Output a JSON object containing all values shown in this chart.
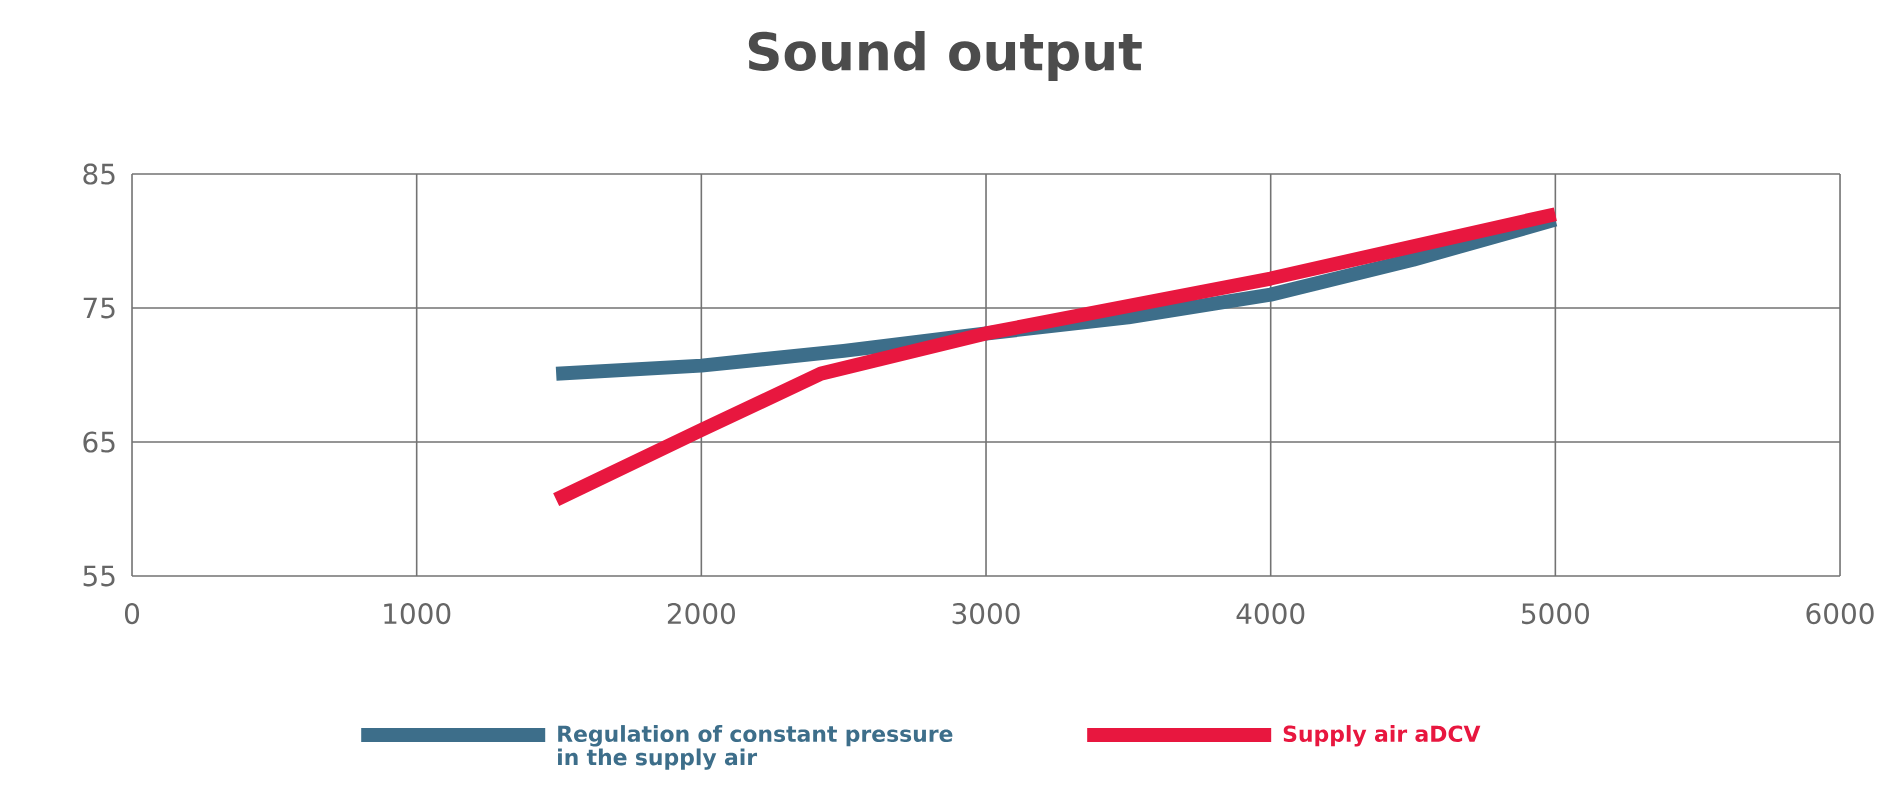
{
  "chart_data": {
    "type": "line",
    "title": "Sound output",
    "series": [
      {
        "name": "Regulation of constant pressure in the supply air",
        "color": "#3d6e8a",
        "x": [
          1490,
          2000,
          2500,
          3000,
          3500,
          4000,
          4500,
          5000
        ],
        "values": [
          70.1,
          70.7,
          71.8,
          73.1,
          74.3,
          76.0,
          78.6,
          81.6
        ]
      },
      {
        "name": "Supply air aDCV",
        "color": "#e8173f",
        "x": [
          1490,
          2000,
          2420,
          3000,
          4000,
          5000
        ],
        "values": [
          60.7,
          65.9,
          70.1,
          73.1,
          77.2,
          82.0
        ]
      }
    ],
    "xlim": [
      0,
      6000
    ],
    "ylim": [
      55,
      85
    ],
    "xticks": [
      0,
      1000,
      2000,
      3000,
      4000,
      5000,
      6000
    ],
    "yticks": [
      55,
      65,
      75,
      85
    ],
    "grid": true,
    "legend": "bottom"
  }
}
